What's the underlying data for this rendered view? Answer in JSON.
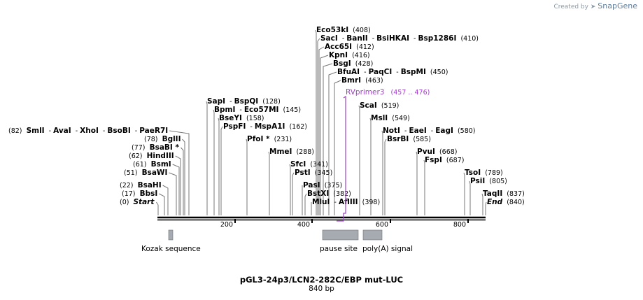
{
  "watermark": {
    "prefix": "Created by",
    "brand": "SnapGene"
  },
  "plasmid": {
    "name": "pGL3-24p3/LCN2-282C/EBP mut-LUC",
    "length_label": "840 bp"
  },
  "ruler": {
    "ticks": [
      "200",
      "400",
      "600",
      "800"
    ]
  },
  "sites": [
    {
      "names": [
        "(82)",
        "SmlI",
        "AvaI",
        "XhoI",
        "BsoBI",
        "PaeR7I"
      ]
    },
    {
      "names": [
        "(78)",
        "BglII"
      ]
    },
    {
      "names": [
        "(77)",
        "BsaBI *"
      ]
    },
    {
      "names": [
        "(62)",
        "HindIII"
      ]
    },
    {
      "names": [
        "(61)",
        "BsmI"
      ]
    },
    {
      "names": [
        "(51)",
        "BsaWI"
      ]
    },
    {
      "names": [
        "(22)",
        "BsaHI"
      ]
    },
    {
      "names": [
        "(17)",
        "BbsI"
      ]
    },
    {
      "names": [
        "(0)",
        "Start"
      ]
    },
    {
      "names": [
        "SapI",
        "BspQI",
        "(128)"
      ]
    },
    {
      "names": [
        "BpmI",
        "Eco57MI",
        "(145)"
      ]
    },
    {
      "names": [
        "BseYI",
        "(158)"
      ]
    },
    {
      "names": [
        "PspFI",
        "MspA1I",
        "(162)"
      ]
    },
    {
      "names": [
        "PfoI *",
        "(231)"
      ]
    },
    {
      "names": [
        "MmeI",
        "(288)"
      ]
    },
    {
      "names": [
        "SfcI",
        "(341)"
      ]
    },
    {
      "names": [
        "PstI",
        "(345)"
      ]
    },
    {
      "names": [
        "PasI",
        "(375)"
      ]
    },
    {
      "names": [
        "BstXI",
        "(382)"
      ]
    },
    {
      "names": [
        "MluI",
        "AflIII",
        "(398)"
      ]
    },
    {
      "names": [
        "Eco53kI",
        "(408)"
      ]
    },
    {
      "names": [
        "SacI",
        "BanII",
        "BsiHKAI",
        "Bsp1286I",
        "(410)"
      ]
    },
    {
      "names": [
        "Acc65I",
        "(412)"
      ]
    },
    {
      "names": [
        "KpnI",
        "(416)"
      ]
    },
    {
      "names": [
        "BsgI",
        "(428)"
      ]
    },
    {
      "names": [
        "BfuAI",
        "PaqCI",
        "BspMI",
        "(450)"
      ]
    },
    {
      "names": [
        "BmrI",
        "(463)"
      ]
    },
    {
      "names": [
        "ScaI",
        "(519)"
      ]
    },
    {
      "names": [
        "MslI",
        "(549)"
      ]
    },
    {
      "names": [
        "NotI",
        "EaeI",
        "EagI",
        "(580)"
      ]
    },
    {
      "names": [
        "BsrBI",
        "(585)"
      ]
    },
    {
      "names": [
        "PvuI",
        "(668)"
      ]
    },
    {
      "names": [
        "FspI",
        "(687)"
      ]
    },
    {
      "names": [
        "TsoI",
        "(789)"
      ]
    },
    {
      "names": [
        "PsiI",
        "(805)"
      ]
    },
    {
      "names": [
        "TaqII",
        "(837)"
      ]
    },
    {
      "names": [
        "End",
        "(840)"
      ]
    }
  ],
  "primer": {
    "name": "RVprimer3",
    "range": "(457 .. 476)"
  },
  "features": [
    {
      "name": "Kozak sequence"
    },
    {
      "name": "pause site"
    },
    {
      "name": "poly(A) signal"
    }
  ],
  "colors": {
    "primer": "#a040c8",
    "feature": "#a6aab1",
    "line": "#777777"
  }
}
